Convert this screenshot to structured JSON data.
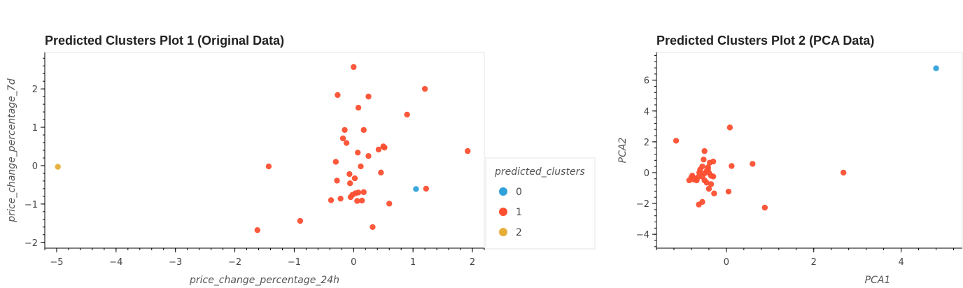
{
  "chart_data": [
    {
      "type": "scatter",
      "title": "Predicted Clusters Plot 1 (Original Data)",
      "xlabel": "price_change_percentage_24h",
      "ylabel": "price_change_percentage_7d",
      "xlim": [
        -5.2,
        2.2
      ],
      "ylim": [
        -2.15,
        2.95
      ],
      "xticks": [
        -5,
        -4,
        -3,
        -2,
        -1,
        0,
        1,
        2
      ],
      "yticks": [
        -2,
        -1,
        0,
        1,
        2
      ],
      "legend": {
        "title": "predicted_clusters",
        "placement": "right",
        "entries": [
          {
            "label": "0",
            "color": "#30a2da"
          },
          {
            "label": "1",
            "color": "#fc4f30"
          },
          {
            "label": "2",
            "color": "#e5ae38"
          }
        ]
      },
      "series": [
        {
          "name": "0",
          "color": "#30a2da",
          "points": [
            [
              1.05,
              -0.61
            ]
          ]
        },
        {
          "name": "1",
          "color": "#fc4f30",
          "points": [
            [
              0.0,
              2.57
            ],
            [
              1.2,
              2.0
            ],
            [
              -0.27,
              1.84
            ],
            [
              0.25,
              1.8
            ],
            [
              0.08,
              1.51
            ],
            [
              0.9,
              1.33
            ],
            [
              -0.15,
              0.93
            ],
            [
              0.17,
              0.93
            ],
            [
              -0.18,
              0.71
            ],
            [
              -0.12,
              0.59
            ],
            [
              1.92,
              0.38
            ],
            [
              0.5,
              0.5
            ],
            [
              0.52,
              0.47
            ],
            [
              0.42,
              0.42
            ],
            [
              0.07,
              0.34
            ],
            [
              0.25,
              0.25
            ],
            [
              -0.3,
              0.1
            ],
            [
              0.12,
              -0.02
            ],
            [
              -1.43,
              -0.02
            ],
            [
              0.46,
              -0.18
            ],
            [
              -0.07,
              -0.22
            ],
            [
              0.02,
              -0.33
            ],
            [
              -0.28,
              -0.39
            ],
            [
              -0.06,
              -0.46
            ],
            [
              1.22,
              -0.6
            ],
            [
              0.17,
              -0.69
            ],
            [
              0.03,
              -0.72
            ],
            [
              0.08,
              -0.7
            ],
            [
              -0.02,
              -0.76
            ],
            [
              -0.22,
              -0.86
            ],
            [
              -0.05,
              -0.82
            ],
            [
              -0.38,
              -0.9
            ],
            [
              0.06,
              -0.92
            ],
            [
              0.14,
              -0.91
            ],
            [
              0.6,
              -0.99
            ],
            [
              0.32,
              -1.6
            ],
            [
              -0.9,
              -1.44
            ],
            [
              -1.62,
              -1.68
            ]
          ]
        },
        {
          "name": "2",
          "color": "#e5ae38",
          "points": [
            [
              -4.98,
              -0.03
            ]
          ]
        }
      ]
    },
    {
      "type": "scatter",
      "title": "Predicted Clusters Plot 2 (PCA Data)",
      "xlabel": "PCA1",
      "ylabel": "PCA2",
      "xlim": [
        -1.6,
        5.4
      ],
      "ylim": [
        -4.9,
        7.8
      ],
      "xticks": [
        0,
        2,
        4
      ],
      "yticks": [
        -4,
        -2,
        0,
        2,
        4,
        6
      ],
      "series": [
        {
          "name": "0",
          "color": "#30a2da",
          "points": [
            [
              4.8,
              6.77
            ]
          ]
        },
        {
          "name": "1",
          "color": "#fc4f30",
          "points": [
            [
              -1.15,
              2.07
            ],
            [
              0.08,
              2.93
            ],
            [
              2.68,
              0.0
            ],
            [
              0.6,
              0.57
            ],
            [
              0.12,
              0.43
            ],
            [
              0.88,
              -2.27
            ],
            [
              0.05,
              -1.23
            ],
            [
              -0.5,
              1.4
            ],
            [
              -0.52,
              0.85
            ],
            [
              -0.3,
              0.72
            ],
            [
              -0.38,
              0.65
            ],
            [
              -0.42,
              0.35
            ],
            [
              -0.55,
              0.4
            ],
            [
              -0.6,
              0.2
            ],
            [
              -0.45,
              0.1
            ],
            [
              -0.4,
              0.0
            ],
            [
              -0.5,
              -0.05
            ],
            [
              -0.35,
              -0.2
            ],
            [
              -0.55,
              -0.25
            ],
            [
              -0.65,
              -0.3
            ],
            [
              -0.7,
              -0.4
            ],
            [
              -0.75,
              -0.45
            ],
            [
              -0.8,
              -0.3
            ],
            [
              -0.85,
              -0.5
            ],
            [
              -0.45,
              -0.65
            ],
            [
              -0.35,
              -0.75
            ],
            [
              -0.4,
              -1.05
            ],
            [
              -0.28,
              -1.35
            ],
            [
              -0.55,
              -1.9
            ],
            [
              -0.63,
              -2.07
            ],
            [
              -0.78,
              -0.2
            ],
            [
              -0.68,
              -0.5
            ],
            [
              -0.5,
              -0.5
            ],
            [
              -0.3,
              -0.25
            ],
            [
              -0.42,
              0.25
            ],
            [
              -0.62,
              0.0
            ]
          ]
        }
      ]
    }
  ]
}
